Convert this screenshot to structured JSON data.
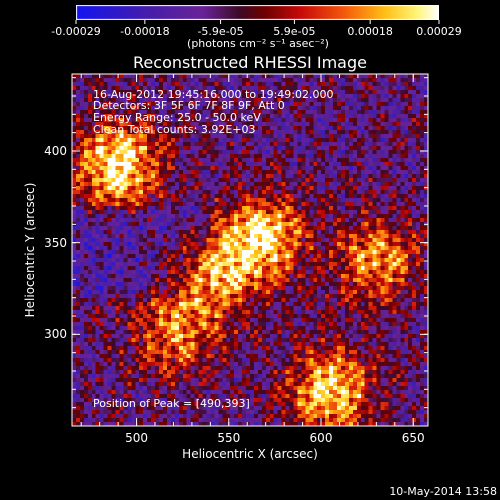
{
  "colorbar": {
    "tick_labels": [
      "-0.00029",
      "-0.00018",
      "-5.9e-05",
      "5.9e-05",
      "0.00018",
      "0.00029"
    ],
    "unit_label": "(photons cm⁻² s⁻¹ asec⁻²)",
    "range": [
      -0.00029,
      0.00029
    ]
  },
  "overlay_text": {
    "time_range": "16-Aug-2012 19:45:16.000 to 19:49:02.000",
    "detectors": "Detectors: 3F 5F 6F 7F 8F 9F, Att 0",
    "energy_range": "Energy Range: 25.0 - 50.0 keV",
    "method_counts": "Clean     Total counts: 3.92E+03",
    "peak_position": "Position of Peak = [490,393]"
  },
  "footer": {
    "date_stamp": "10-May-2014 13:58"
  },
  "chart_data": {
    "type": "heatmap",
    "title": "Reconstructed RHESSI Image",
    "xlabel": "Heliocentric X (arcsec)",
    "ylabel": "Heliocentric Y (arcsec)",
    "xlim": [
      465,
      658
    ],
    "ylim": [
      250,
      442
    ],
    "x_ticks": [
      500,
      550,
      600,
      650
    ],
    "y_ticks": [
      300,
      350,
      400
    ],
    "x_tick_labels": [
      "500",
      "550",
      "600",
      "650"
    ],
    "y_tick_labels": [
      "300",
      "350",
      "400"
    ],
    "zlim": [
      -0.00029,
      0.00029
    ],
    "colormap": "blue-purple-red-yellow-white",
    "peak": [
      490,
      393
    ],
    "bright_regions": [
      {
        "x": 490,
        "y": 393,
        "level": 1.0
      },
      {
        "x": 568,
        "y": 352,
        "level": 0.95
      },
      {
        "x": 605,
        "y": 270,
        "level": 0.9
      },
      {
        "x": 540,
        "y": 330,
        "level": 0.7
      },
      {
        "x": 630,
        "y": 340,
        "level": 0.7
      },
      {
        "x": 520,
        "y": 300,
        "level": 0.6
      }
    ]
  }
}
